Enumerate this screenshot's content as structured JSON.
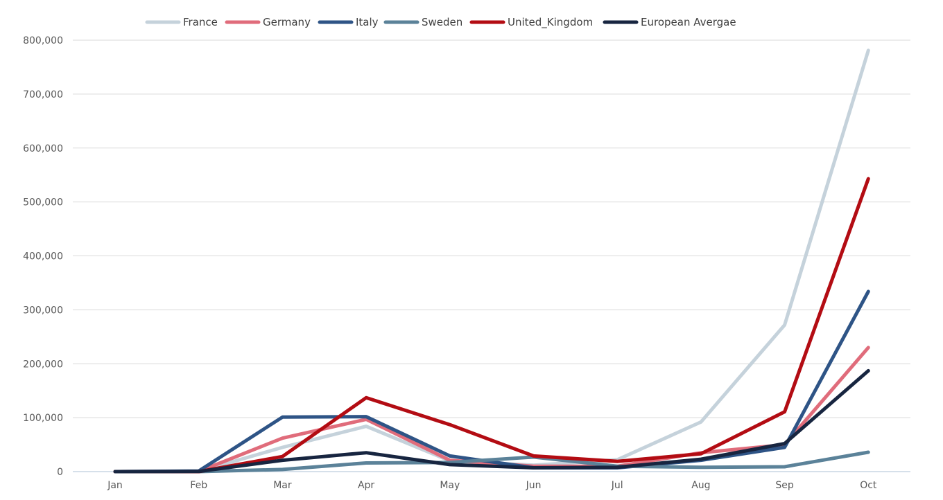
{
  "chart_data": {
    "type": "line",
    "title": "",
    "xlabel": "",
    "ylabel": "",
    "categories": [
      "Jan",
      "Feb",
      "Mar",
      "Apr",
      "May",
      "Jun",
      "Jul",
      "Aug",
      "Sep",
      "Oct"
    ],
    "ylim": [
      0,
      800000
    ],
    "yticks": [
      0,
      100000,
      200000,
      300000,
      400000,
      500000,
      600000,
      700000,
      800000
    ],
    "ytick_labels": [
      "0",
      "100,000",
      "200,000",
      "300,000",
      "400,000",
      "500,000",
      "600,000",
      "700,000",
      "800,000"
    ],
    "grid": true,
    "legend_position": "top",
    "series": [
      {
        "name": "France",
        "color": "#c5d2db",
        "values": [
          0,
          300,
          45000,
          84000,
          20000,
          12000,
          22000,
          92000,
          272000,
          781000
        ]
      },
      {
        "name": "Germany",
        "color": "#e06c7b",
        "values": [
          0,
          200,
          62000,
          97000,
          21000,
          10000,
          10000,
          35000,
          50000,
          230000
        ]
      },
      {
        "name": "Italy",
        "color": "#2e5486",
        "values": [
          0,
          1100,
          101000,
          102000,
          29000,
          7000,
          7000,
          21000,
          45000,
          334000
        ]
      },
      {
        "name": "Sweden",
        "color": "#5b8299",
        "values": [
          0,
          0,
          4000,
          16000,
          17000,
          27000,
          10000,
          8000,
          9000,
          36000
        ]
      },
      {
        "name": "United_Kingdom",
        "color": "#b30c13",
        "values": [
          0,
          0,
          28000,
          137000,
          87000,
          29000,
          19000,
          33000,
          111000,
          543000
        ]
      },
      {
        "name": "European Avergae",
        "color": "#172540",
        "values": [
          0,
          300,
          21000,
          35000,
          13000,
          7000,
          8000,
          23000,
          52000,
          187000
        ]
      }
    ]
  }
}
